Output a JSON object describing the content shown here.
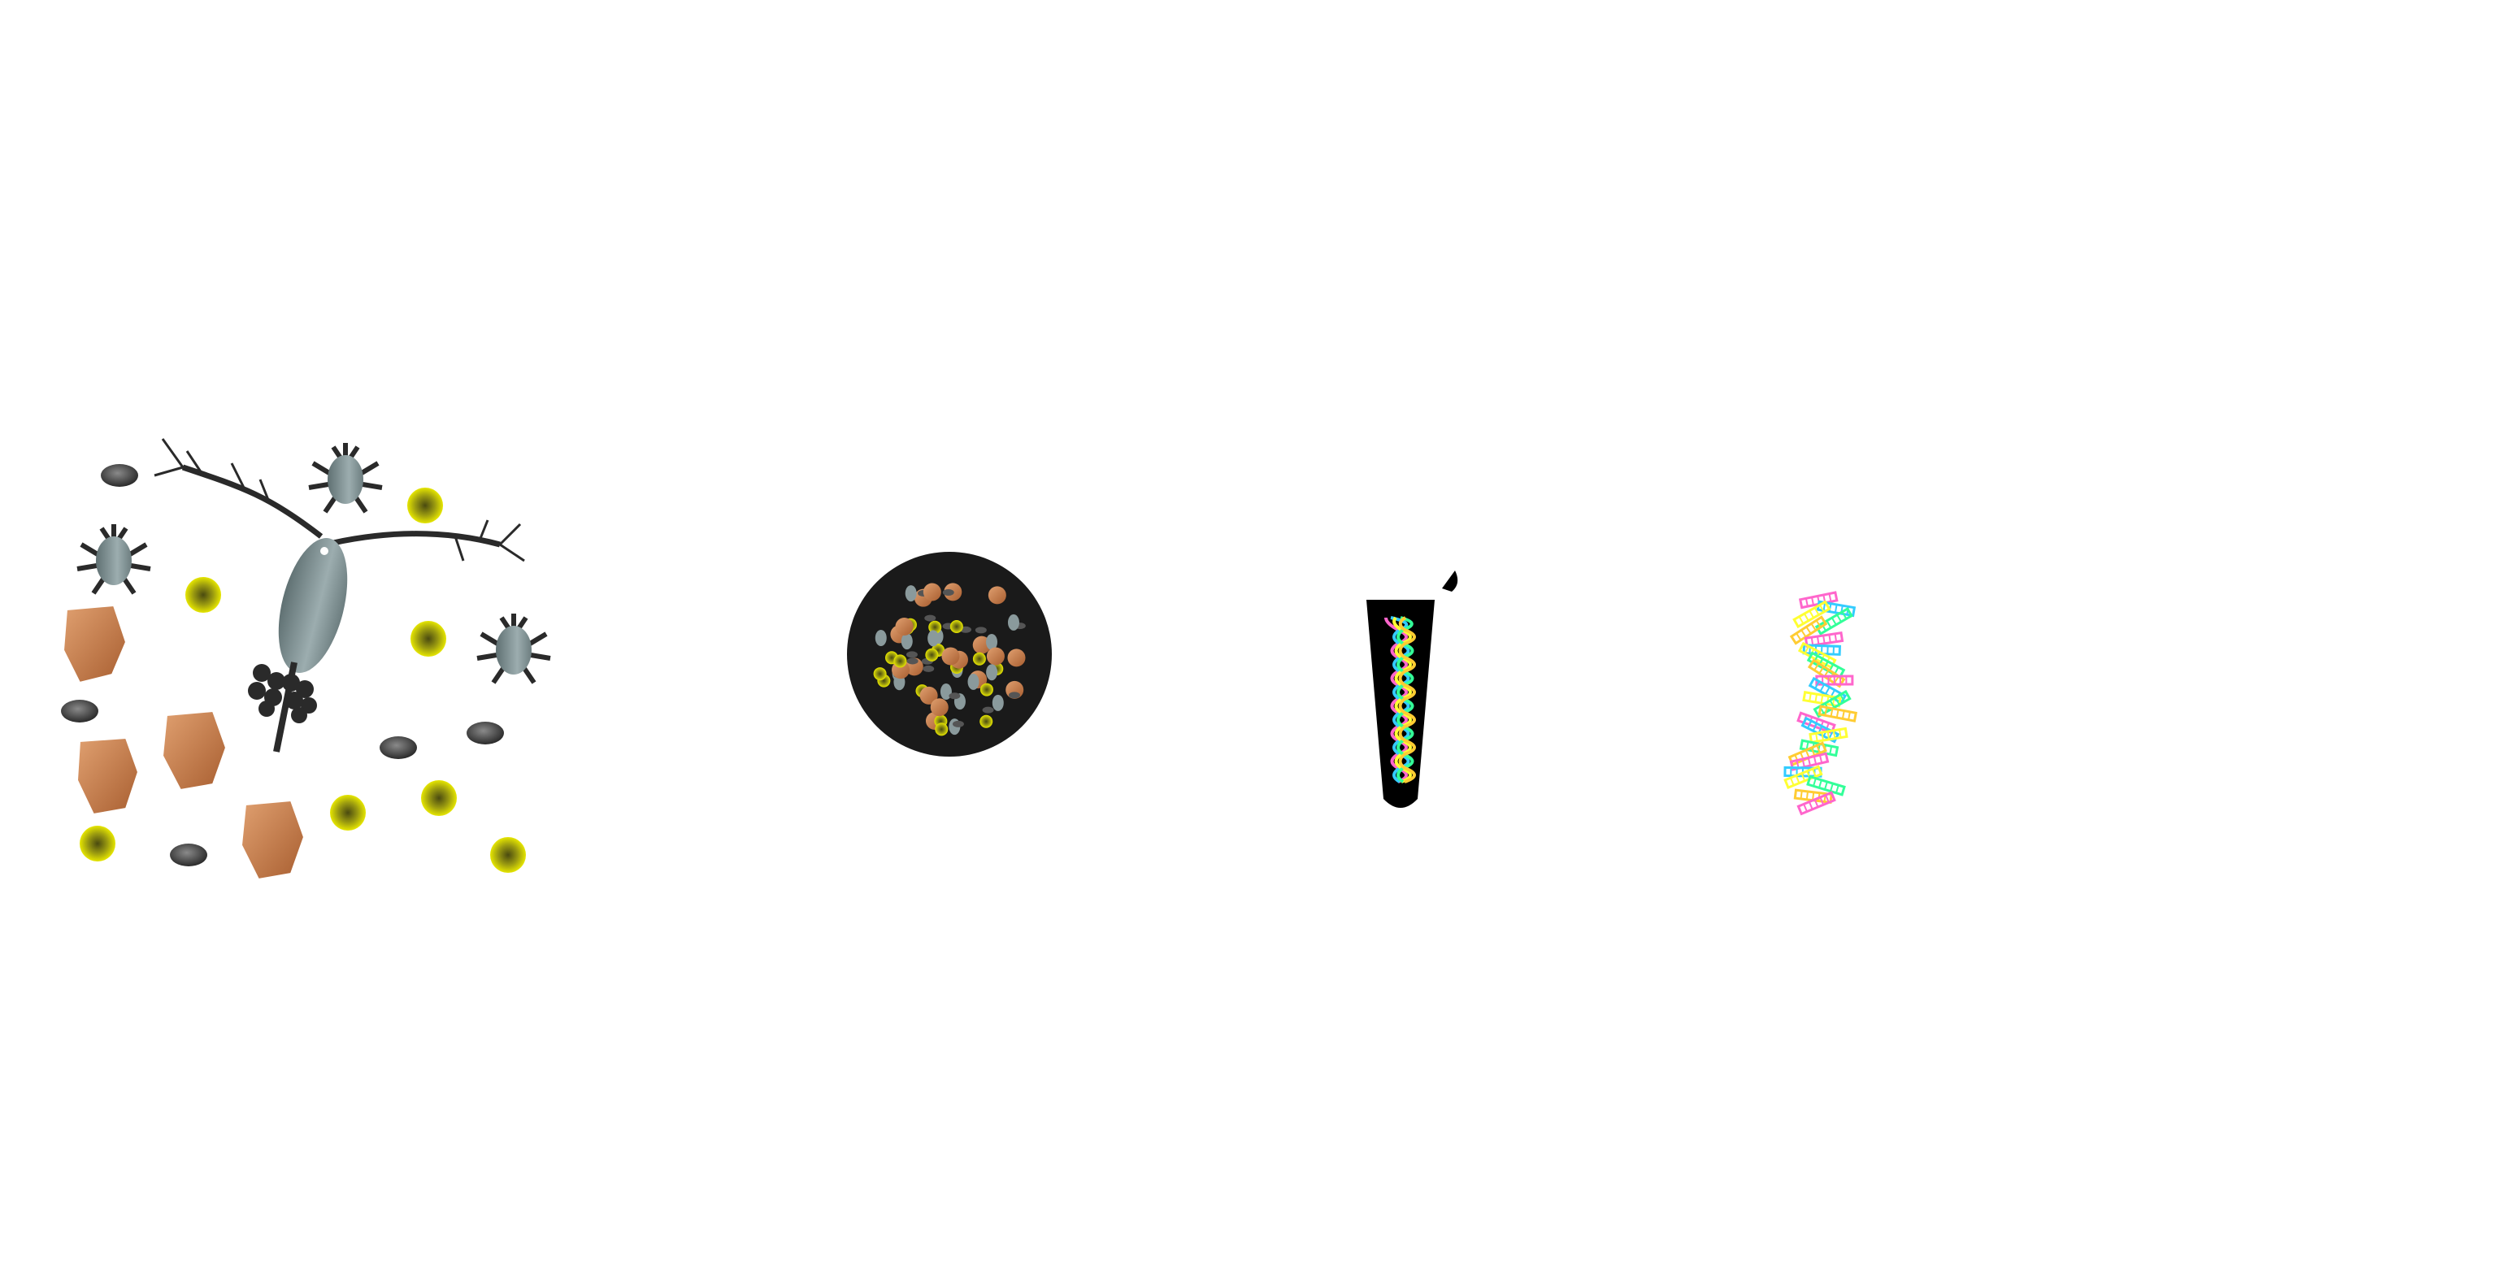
{
  "diagram": {
    "panels": [
      {
        "id": "plankton-community",
        "icon": "plankton-mix-icon",
        "items": [
          "copepod-with-egg-sacs",
          "nauplius-larva",
          "algal-cell",
          "detritus-particle",
          "sediment-grain"
        ]
      },
      {
        "id": "filtered-sample",
        "icon": "sample-disc-icon"
      },
      {
        "id": "dna-extract",
        "icon": "extraction-tube-icon"
      },
      {
        "id": "sequenced-fragments",
        "icon": "dna-fragments-icon"
      }
    ],
    "colors": {
      "background": "#ffffff",
      "copepod_body": "#7f9092",
      "appendage": "#2a2a2a",
      "algae_rim": "#d4d400",
      "algae_center": "#6b6b10",
      "detritus": "#c07a45",
      "sediment": "#3c3c3c",
      "disc": "#1a1a1a",
      "tube": "#000000",
      "dna_strands": [
        "#ff66cc",
        "#33ccff",
        "#ffff33",
        "#33ff99",
        "#ffcc33"
      ]
    }
  }
}
